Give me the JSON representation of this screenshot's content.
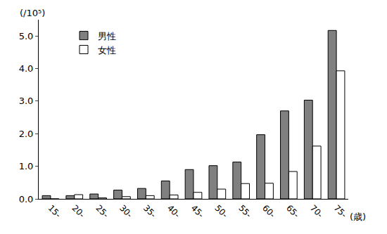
{
  "chart_data": {
    "type": "bar",
    "ylabel": "(/10⁵)",
    "xlabel": "(歳)",
    "categories": [
      "15-",
      "20-",
      "25-",
      "30-",
      "35-",
      "40-",
      "45-",
      "50-",
      "55-",
      "60-",
      "65-",
      "70-",
      "75-"
    ],
    "series": [
      {
        "name": "男性",
        "color": "#808080",
        "values": [
          0.1,
          0.1,
          0.15,
          0.27,
          0.32,
          0.55,
          0.9,
          1.02,
          1.13,
          1.97,
          2.7,
          3.03,
          5.17
        ]
      },
      {
        "name": "女性",
        "color": "#ffffff",
        "values": [
          0.0,
          0.13,
          0.03,
          0.07,
          0.1,
          0.12,
          0.2,
          0.3,
          0.47,
          0.48,
          0.84,
          1.62,
          3.93
        ]
      }
    ],
    "ylim": [
      0,
      5.5
    ],
    "yticks": [
      {
        "value": 0,
        "label": "0.0"
      },
      {
        "value": 1,
        "label": "1.0"
      },
      {
        "value": 2,
        "label": "2.0"
      },
      {
        "value": 3,
        "label": "3.0"
      },
      {
        "value": 4,
        "label": "4.0"
      },
      {
        "value": 5,
        "label": "5.0"
      }
    ],
    "grid": false,
    "legend": "upper left"
  }
}
